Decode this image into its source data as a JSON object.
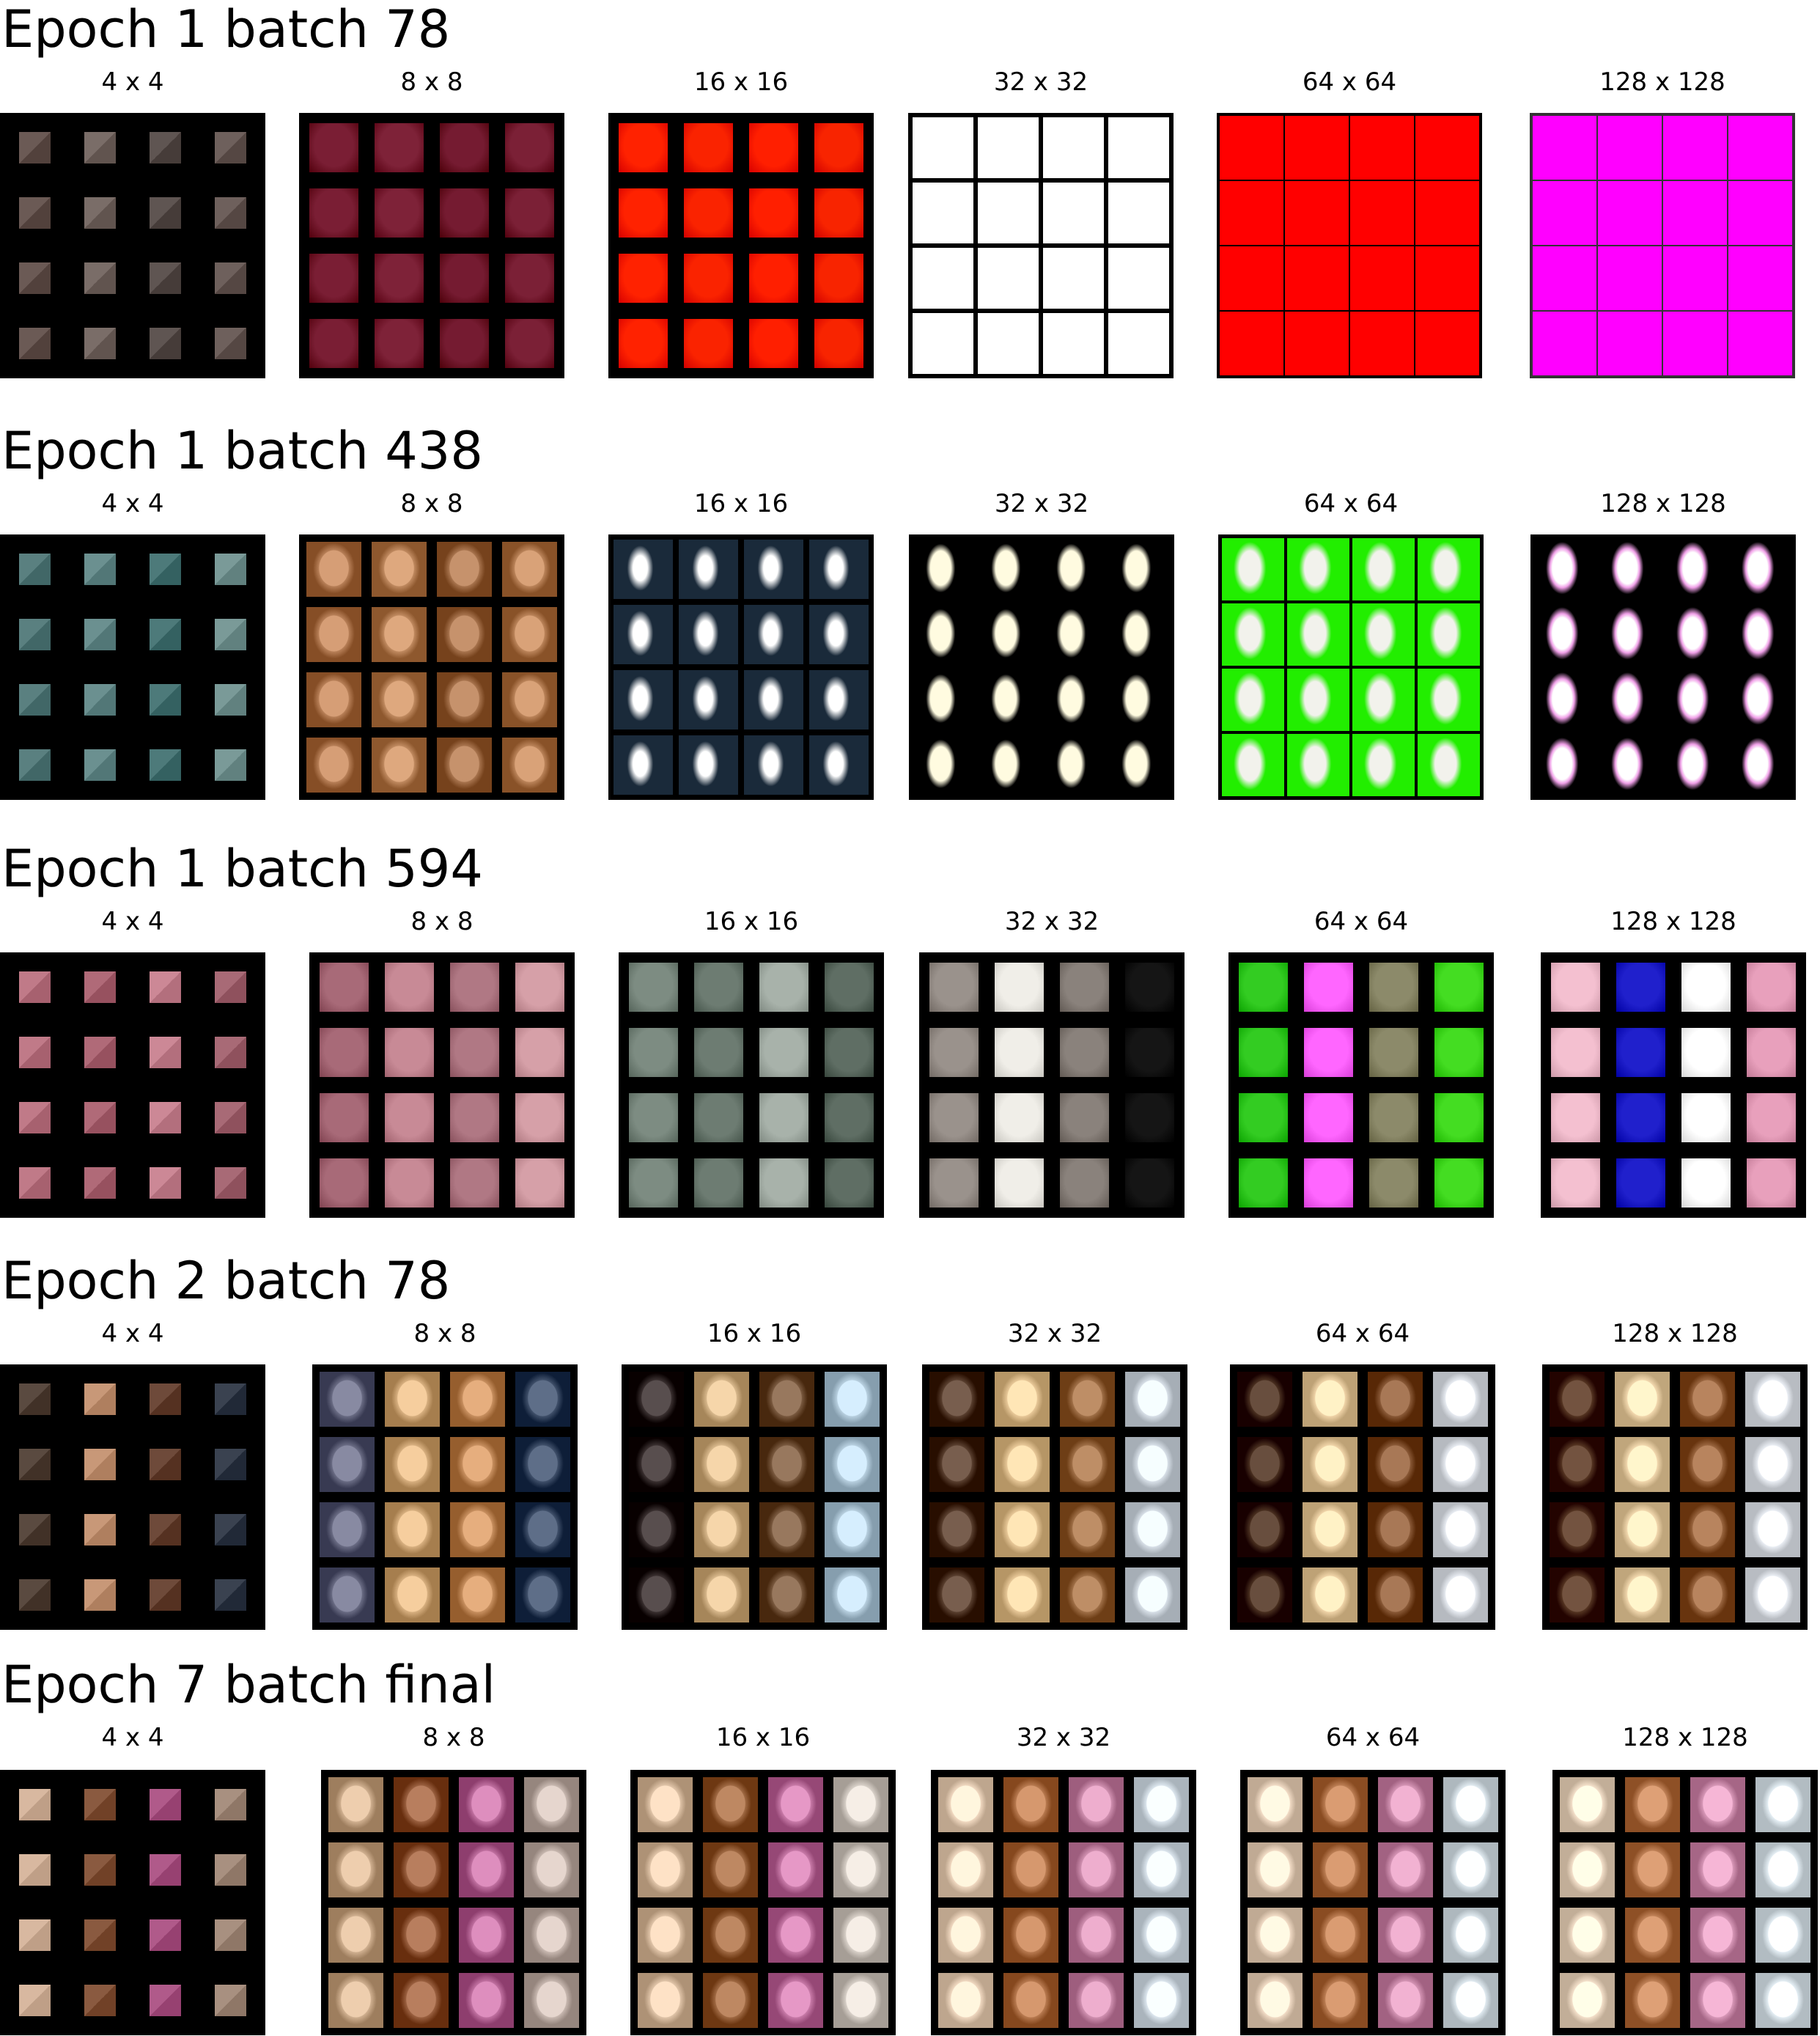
{
  "resolution_labels": [
    "4 x 4",
    "8 x 8",
    "16 x 16",
    "32 x 32",
    "64 x 64",
    "128 x 128"
  ],
  "sections": [
    {
      "title": "Epoch 1 batch 78",
      "panels": [
        {
          "label": "4 x 4",
          "bg": "#000000",
          "cell_pattern": [
            "#6b5a55",
            "#7a6d68",
            "#5f5552",
            "#6e605c"
          ],
          "pad": "pixel"
        },
        {
          "label": "8 x 8",
          "bg": "#000000",
          "cell_pattern": [
            "#7a1e34",
            "#7e2238",
            "#751b31",
            "#7b2036"
          ],
          "pad": "soft"
        },
        {
          "label": "16 x 16",
          "bg": "#000000",
          "cell_pattern": [
            "#ff2200",
            "#fa2300",
            "#ff1f00",
            "#f82400"
          ],
          "pad": "soft"
        },
        {
          "label": "32 x 32",
          "bg": "#000000",
          "cell_pattern": [
            "#ffffff"
          ],
          "pad": "line"
        },
        {
          "label": "64 x 64",
          "bg": "#000000",
          "cell_pattern": [
            "#ff0000"
          ],
          "pad": "flat"
        },
        {
          "label": "128 x 128",
          "bg": "#333333",
          "cell_pattern": [
            "#ff00ff"
          ],
          "pad": "flat"
        }
      ]
    },
    {
      "title": "Epoch 1 batch 438",
      "panels": [
        {
          "label": "4 x 4",
          "bg": "#000000",
          "cell_pattern": [
            "#5a8080",
            "#6b9090",
            "#4d7a7a",
            "#7a9a98"
          ],
          "pad": "pixel"
        },
        {
          "label": "8 x 8",
          "bg": "#000000",
          "cell_pattern": [
            "#b88058",
            "#c08a60",
            "#a8744e",
            "#bb845a"
          ],
          "pad": "face"
        },
        {
          "label": "16 x 16",
          "bg": "#000000",
          "cell_pattern": [
            "#000000"
          ],
          "pad": "blob-white"
        },
        {
          "label": "32 x 32",
          "bg": "#000000",
          "cell_pattern": [
            "#000000"
          ],
          "pad": "blob-cream"
        },
        {
          "label": "64 x 64",
          "bg": "#000000",
          "cell_pattern": [
            "#22ee00"
          ],
          "pad": "blob-green"
        },
        {
          "label": "128 x 128",
          "bg": "#000000",
          "cell_pattern": [
            "#000000"
          ],
          "pad": "blob-pink"
        }
      ]
    },
    {
      "title": "Epoch 1 batch 594",
      "panels": [
        {
          "label": "4 x 4",
          "bg": "#000000",
          "cell_pattern": [
            "#c07a88",
            "#b06a78",
            "#cc8896",
            "#a86a76"
          ],
          "pad": "pixel"
        },
        {
          "label": "8 x 8",
          "bg": "#000000",
          "cell_pattern": [
            "#a86a78",
            "#c88a96",
            "#b07884",
            "#d6a0a8"
          ],
          "pad": "soft"
        },
        {
          "label": "16 x 16",
          "bg": "#000000",
          "cell_pattern": [
            "#7d8c82",
            "#6d7c72",
            "#a8b2aa",
            "#5f6e64"
          ],
          "pad": "soft"
        },
        {
          "label": "32 x 32",
          "bg": "#000000",
          "cell_pattern": [
            "#9a928c",
            "#f0eee8",
            "#8a827c",
            "#151515"
          ],
          "pad": "soft"
        },
        {
          "label": "64 x 64",
          "bg": "#000000",
          "cell_pattern": [
            "#33cc22",
            "#ff66ff",
            "#8c8a6a",
            "#44dd22"
          ],
          "pad": "soft"
        },
        {
          "label": "128 x 128",
          "bg": "#000000",
          "cell_pattern": [
            "#f4c0d0",
            "#2020cc",
            "#ffffff",
            "#e8a0bc"
          ],
          "pad": "soft"
        }
      ]
    },
    {
      "title": "Epoch 2 batch 78",
      "panels": [
        {
          "label": "4 x 4",
          "bg": "#000000",
          "cell_pattern": [
            "#5a4a40",
            "#c89878",
            "#6e4a3a",
            "#3a4250"
          ],
          "pad": "pixel"
        },
        {
          "label": "8 x 8",
          "bg": "#000000",
          "cell_pattern": [
            "#6a6c84",
            "#d8b080",
            "#c89060",
            "#40506a"
          ],
          "pad": "face"
        },
        {
          "label": "16 x 16",
          "bg": "#000000",
          "cell_pattern": [
            "#3a3030",
            "#d8b88c",
            "#7a5a40",
            "#b8d0e0"
          ],
          "pad": "face"
        },
        {
          "label": "32 x 32",
          "bg": "#000000",
          "cell_pattern": [
            "#5a4030",
            "#e8c898",
            "#a07048",
            "#d8e0e8"
          ],
          "pad": "face"
        },
        {
          "label": "64 x 64",
          "bg": "#000000",
          "cell_pattern": [
            "#4a3020",
            "#f0d4a8",
            "#8a5a38",
            "#e8ecf2"
          ],
          "pad": "face"
        },
        {
          "label": "128 x 128",
          "bg": "#000000",
          "cell_pattern": [
            "#553522",
            "#f2d8ae",
            "#9a6640",
            "#eaeef4"
          ],
          "pad": "face"
        }
      ]
    },
    {
      "title": "Epoch 7 batch final",
      "panels": [
        {
          "label": "4 x 4",
          "bg": "#000000",
          "cell_pattern": [
            "#d8b8a0",
            "#8a5a40",
            "#b05a8a",
            "#a89080"
          ],
          "pad": "pixel"
        },
        {
          "label": "8 x 8",
          "bg": "#000000",
          "cell_pattern": [
            "#d0b090",
            "#9a6040",
            "#c070a0",
            "#c8b8b0"
          ],
          "pad": "face"
        },
        {
          "label": "16 x 16",
          "bg": "#000000",
          "cell_pattern": [
            "#e0c4a8",
            "#a06a44",
            "#c87aa8",
            "#d8d0c8"
          ],
          "pad": "face"
        },
        {
          "label": "32 x 32",
          "bg": "#000000",
          "cell_pattern": [
            "#f0d8c0",
            "#b87a50",
            "#d090b0",
            "#dce6ee"
          ],
          "pad": "face"
        },
        {
          "label": "64 x 64",
          "bg": "#000000",
          "cell_pattern": [
            "#f2dcc6",
            "#bc7e54",
            "#d494b4",
            "#e0eaf0"
          ],
          "pad": "face"
        },
        {
          "label": "128 x 128",
          "bg": "#000000",
          "cell_pattern": [
            "#f4e0ca",
            "#c08258",
            "#d898b8",
            "#e4eef4"
          ],
          "pad": "face"
        }
      ]
    }
  ]
}
